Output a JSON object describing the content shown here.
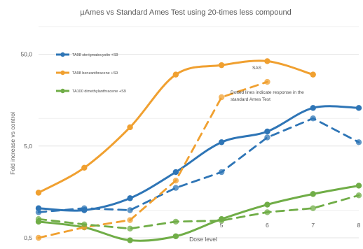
{
  "chart_data": {
    "type": "line",
    "title": "µAmes vs Standard Ames Test using 20-times less compound",
    "xlabel": "Dose level",
    "ylabel": "Fold increase vs control",
    "x": [
      1,
      2,
      3,
      4,
      5,
      6,
      7,
      8
    ],
    "x_tick_labels": [
      "5",
      "6",
      "7",
      "8"
    ],
    "y_scale": "log",
    "ylim": [
      0.5,
      100
    ],
    "y_ticks": [
      0.5,
      5.0,
      50.0
    ],
    "y_tick_labels": [
      "0,5",
      "5,0",
      "50,0"
    ],
    "grid": true,
    "legend_position": "top-left",
    "series": [
      {
        "name": "TA98 sterigmatocystin +S9",
        "style": "solid",
        "color": "#2e75b6",
        "values": [
          1.05,
          1.0,
          1.35,
          2.6,
          5.5,
          7.2,
          13.0,
          13.0
        ]
      },
      {
        "name": "TA98 benzanthracene +S9",
        "style": "solid",
        "color": "#f0a030",
        "values": [
          1.55,
          2.9,
          8.0,
          30.0,
          38.0,
          42.0,
          30.0,
          null
        ]
      },
      {
        "name": "TA100 dimethylanthracene +S9",
        "style": "solid",
        "color": "#70ad47",
        "values": [
          0.75,
          0.65,
          0.47,
          0.52,
          0.8,
          1.15,
          1.5,
          1.85
        ]
      },
      {
        "style": "dashed",
        "color": "#2e75b6",
        "values": [
          0.95,
          1.05,
          1.0,
          1.75,
          2.6,
          6.2,
          10.0,
          5.5
        ]
      },
      {
        "style": "dashed",
        "color": "#f0a030",
        "values": [
          0.5,
          0.65,
          0.78,
          2.1,
          17.0,
          25.0,
          null,
          null
        ]
      },
      {
        "style": "dashed",
        "color": "#70ad47",
        "values": [
          0.8,
          0.7,
          0.63,
          0.75,
          0.77,
          0.95,
          1.05,
          1.45
        ]
      }
    ],
    "annotations": [
      {
        "text": "SAS"
      },
      {
        "text": "Dotted lines indicate response in the standard Ames Test"
      }
    ]
  }
}
